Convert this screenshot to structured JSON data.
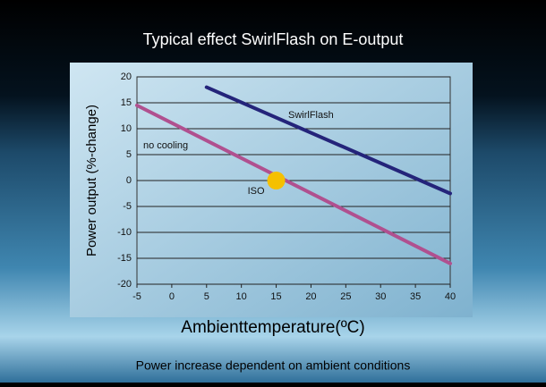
{
  "chart_data": {
    "type": "line",
    "title": "Typical effect SwirlFlash on E-output",
    "xlabel": "Ambienttemperature(ºC)",
    "ylabel": "Power output (%-change)",
    "footer": "Power increase dependent on ambient conditions",
    "xlim": [
      -5,
      40
    ],
    "ylim": [
      -20,
      20
    ],
    "xticks": [
      -5,
      0,
      5,
      10,
      15,
      20,
      25,
      30,
      35,
      40
    ],
    "yticks": [
      -20,
      -15,
      -10,
      -5,
      0,
      5,
      10,
      15,
      20
    ],
    "grid": true,
    "series": [
      {
        "name": "SwirlFlash",
        "color": "#24247a",
        "x": [
          5,
          40
        ],
        "values": [
          18,
          -2.5
        ]
      },
      {
        "name": "no cooling",
        "color": "#b0508f",
        "x": [
          -5,
          40
        ],
        "values": [
          14.5,
          -16
        ]
      }
    ],
    "points": [
      {
        "label": "ISO",
        "x": 15,
        "y": 0,
        "color": "#f5c000"
      }
    ]
  }
}
